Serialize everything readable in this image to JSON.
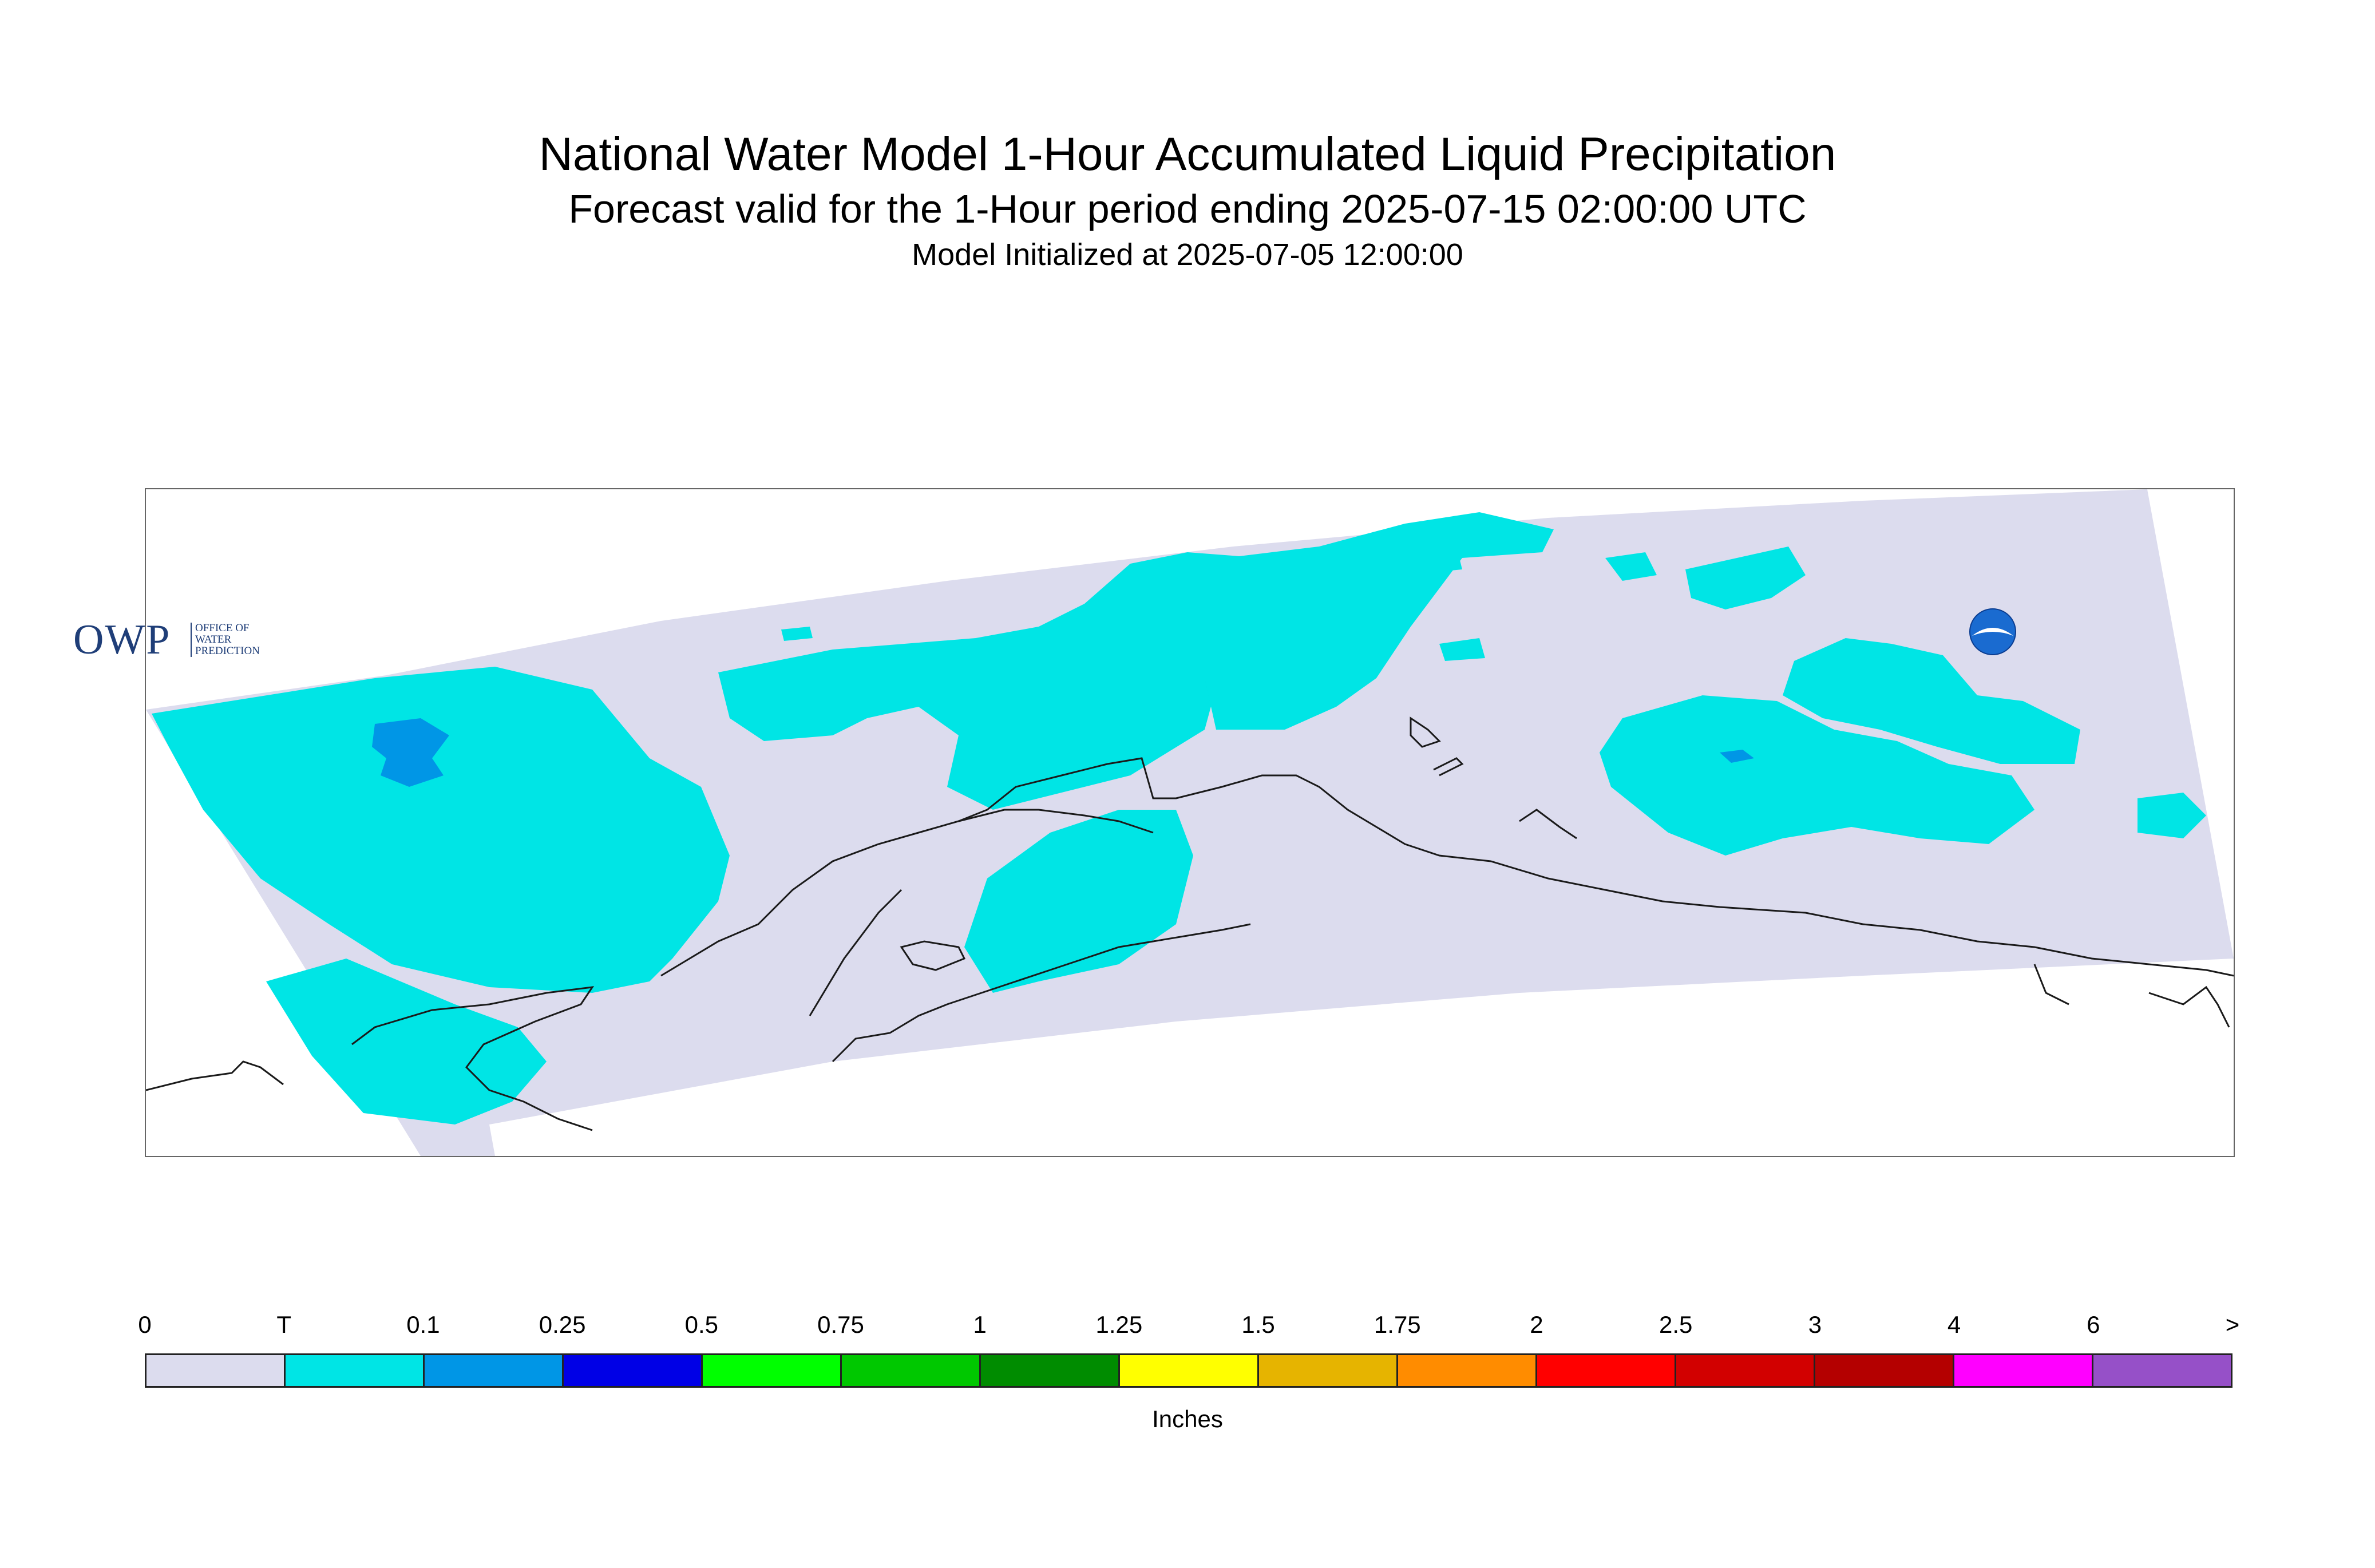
{
  "title": "National Water Model 1-Hour Accumulated Liquid Precipitation",
  "subtitle": "Forecast valid for the 1-Hour period ending 2025-07-15 02:00:00 UTC",
  "init_text": "Model Initialized at 2025-07-05 12:00:00",
  "logo": {
    "owp_main": "OWP",
    "owp_lines": [
      "OFFICE OF",
      "WATER",
      "PREDICTION"
    ],
    "noaa_text": "NOAA"
  },
  "map": {
    "domain_fill": "#dcdcee",
    "light_precip_color": "#00e5e5",
    "moderate_precip_color": "#0096e6",
    "coastline_color": "#1a1a1a"
  },
  "legend": {
    "units": "Inches",
    "tick_labels": [
      "0",
      "T",
      "0.1",
      "0.25",
      "0.5",
      "0.75",
      "1",
      "1.25",
      "1.5",
      "1.75",
      "2",
      "2.5",
      "3",
      "4",
      "6",
      ">"
    ],
    "colors": [
      "#dcdcee",
      "#00e5e5",
      "#0096e6",
      "#0000e6",
      "#00ff00",
      "#00c800",
      "#008c00",
      "#ffff00",
      "#e6b400",
      "#ff8c00",
      "#ff0000",
      "#d20000",
      "#b40000",
      "#ff00ff",
      "#9650c8"
    ]
  }
}
